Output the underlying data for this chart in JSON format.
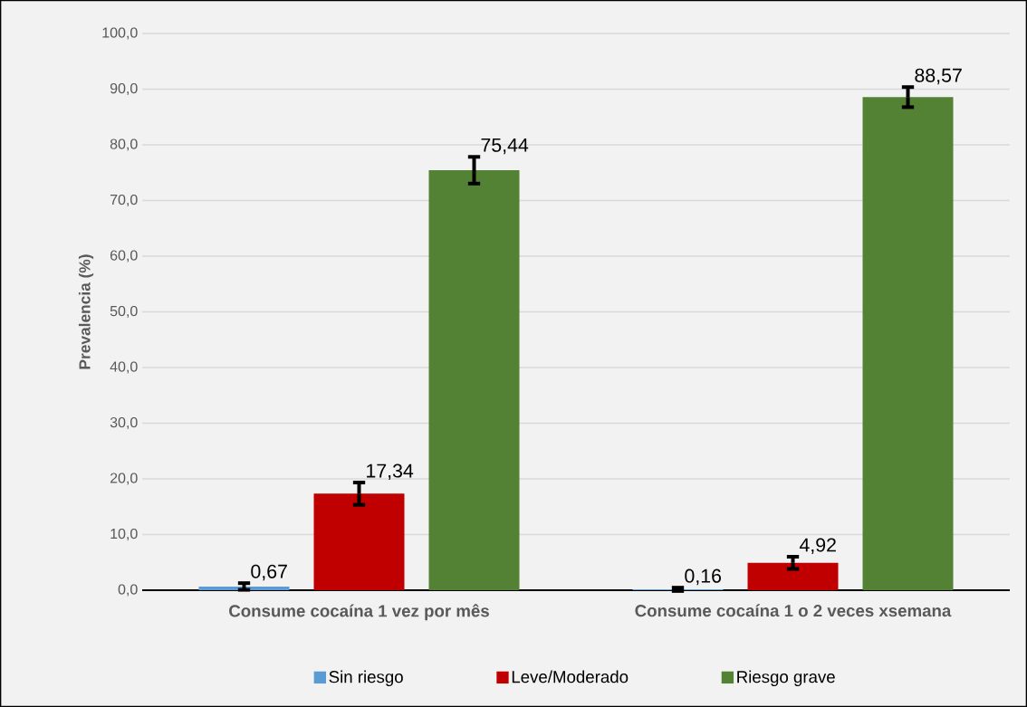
{
  "chart_data": {
    "type": "bar",
    "ylabel": "Prevalencia (%)",
    "categories": [
      "Consume cocaína 1 vez por mês",
      "Consume cocaína  1 o 2 veces xsemana"
    ],
    "series": [
      {
        "name": "Sin riesgo",
        "color": "#5b9bd5",
        "values": [
          0.67,
          0.16
        ],
        "errors": [
          0.6,
          0.3
        ],
        "value_labels": [
          "0,67",
          "0,16"
        ]
      },
      {
        "name": "Leve/Moderado",
        "color": "#c00000",
        "values": [
          17.34,
          4.92
        ],
        "errors": [
          2.0,
          1.1
        ],
        "value_labels": [
          "17,34",
          "4,92"
        ]
      },
      {
        "name": "Riesgo grave",
        "color": "#548235",
        "values": [
          75.44,
          88.57
        ],
        "errors": [
          2.4,
          1.8
        ],
        "value_labels": [
          "75,44",
          "88,57"
        ]
      }
    ],
    "ylim": [
      0,
      100
    ],
    "yticks": [
      {
        "value": 0,
        "label": "0,0"
      },
      {
        "value": 10,
        "label": "10,0"
      },
      {
        "value": 20,
        "label": "20,0"
      },
      {
        "value": 30,
        "label": "30,0"
      },
      {
        "value": 40,
        "label": "40,0"
      },
      {
        "value": 50,
        "label": "50,0"
      },
      {
        "value": 60,
        "label": "60,0"
      },
      {
        "value": 70,
        "label": "70,0"
      },
      {
        "value": 80,
        "label": "80,0"
      },
      {
        "value": 90,
        "label": "90,0"
      },
      {
        "value": 100,
        "label": "100,0"
      }
    ],
    "grid": "y",
    "legend": "bottom"
  }
}
